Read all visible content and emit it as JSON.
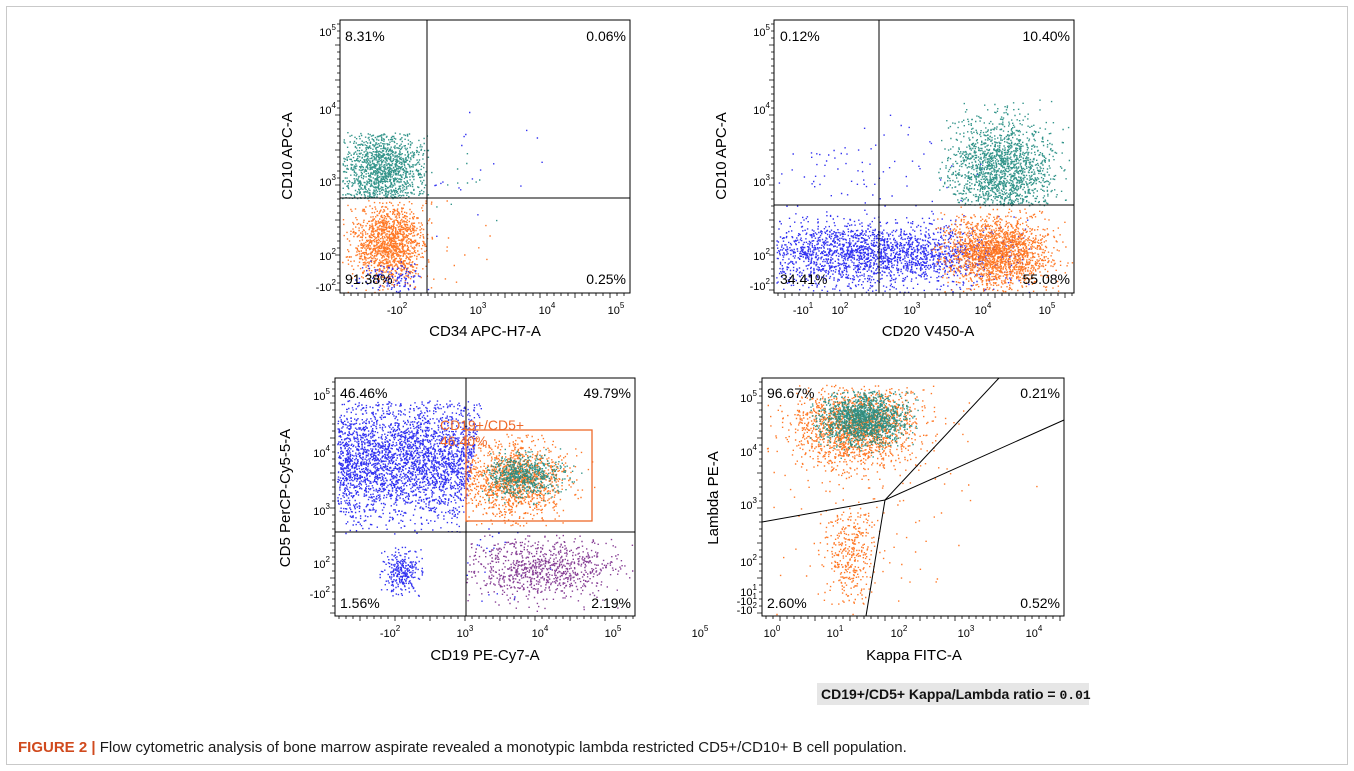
{
  "panels": [
    {
      "ylabel": "CD10 APC-A",
      "xlabel": "CD34 APC-H7-A",
      "yticks": [
        {
          "b": "10",
          "e": "5"
        },
        {
          "b": "10",
          "e": "4"
        },
        {
          "b": "10",
          "e": "3"
        },
        {
          "b": "10",
          "e": "2"
        },
        {
          "b": "-10",
          "e": "2"
        }
      ],
      "xticks": [
        {
          "b": "-10",
          "e": "2"
        },
        {
          "b": "10",
          "e": "3"
        },
        {
          "b": "10",
          "e": "4"
        },
        {
          "b": "10",
          "e": "5"
        }
      ],
      "quadrants": {
        "ul": "8.31%",
        "ur": "0.06%",
        "ll": "91.38%",
        "lr": "0.25%"
      }
    },
    {
      "ylabel": "CD10 APC-A",
      "xlabel": "CD20 V450-A",
      "yticks": [
        {
          "b": "10",
          "e": "5"
        },
        {
          "b": "10",
          "e": "4"
        },
        {
          "b": "10",
          "e": "3"
        },
        {
          "b": "10",
          "e": "2"
        },
        {
          "b": "-10",
          "e": "2"
        }
      ],
      "xticks": [
        {
          "b": "-10",
          "e": "1"
        },
        {
          "b": "10",
          "e": "2"
        },
        {
          "b": "10",
          "e": "3"
        },
        {
          "b": "10",
          "e": "4"
        },
        {
          "b": "10",
          "e": "5"
        }
      ],
      "quadrants": {
        "ul": "0.12%",
        "ur": "10.40%",
        "ll": "34.41%",
        "lr": "55.08%"
      }
    },
    {
      "ylabel": "CD5 PerCP-Cy5-5-A",
      "xlabel": "CD19 PE-Cy7-A",
      "yticks": [
        {
          "b": "10",
          "e": "5"
        },
        {
          "b": "10",
          "e": "4"
        },
        {
          "b": "10",
          "e": "3"
        },
        {
          "b": "10",
          "e": "2"
        },
        {
          "b": "-10",
          "e": "2"
        }
      ],
      "xticks": [
        {
          "b": "-10",
          "e": "2"
        },
        {
          "b": "10",
          "e": "3"
        },
        {
          "b": "10",
          "e": "4"
        },
        {
          "b": "10",
          "e": "5"
        }
      ],
      "quadrants": {
        "ul": "46.46%",
        "ur": "49.79%",
        "ll": "1.56%",
        "lr": "2.19%"
      },
      "gate": {
        "name": "CD19+/CD5+",
        "value": "46.40%"
      }
    },
    {
      "ylabel": "Lambda PE-A",
      "xlabel": "Kappa FITC-A",
      "yticks": [
        {
          "b": "10",
          "e": "5"
        },
        {
          "b": "10",
          "e": "4"
        },
        {
          "b": "10",
          "e": "3"
        },
        {
          "b": "10",
          "e": "2"
        },
        {
          "b": "10",
          "e": "1"
        },
        {
          "b": "-10",
          "e": "1"
        },
        {
          "b": "-10",
          "e": "2"
        }
      ],
      "xticks": [
        {
          "b": "10",
          "e": "0"
        },
        {
          "b": "10",
          "e": "1"
        },
        {
          "b": "10",
          "e": "2"
        },
        {
          "b": "10",
          "e": "3"
        },
        {
          "b": "10",
          "e": "4"
        },
        {
          "b": "10",
          "e": "5"
        }
      ],
      "quadrants": {
        "ul": "96.67%",
        "ur": "0.21%",
        "ll": "2.60%",
        "lr": "0.52%"
      }
    }
  ],
  "ratio": {
    "label": "CD19+/CD5+ Kappa/Lambda ratio = ",
    "value": "0.01"
  },
  "caption": {
    "label": "FIGURE 2 |",
    "text": " Flow cytometric analysis of bone marrow aspirate revealed a monotypic lambda restricted CD5+/CD10+ B cell population."
  },
  "colors": {
    "teal": "#1e8a7e",
    "orange": "#ff6a10",
    "blue": "#1c1cf0",
    "purple": "#7a2a8a",
    "gate": "#ef6a2a"
  }
}
